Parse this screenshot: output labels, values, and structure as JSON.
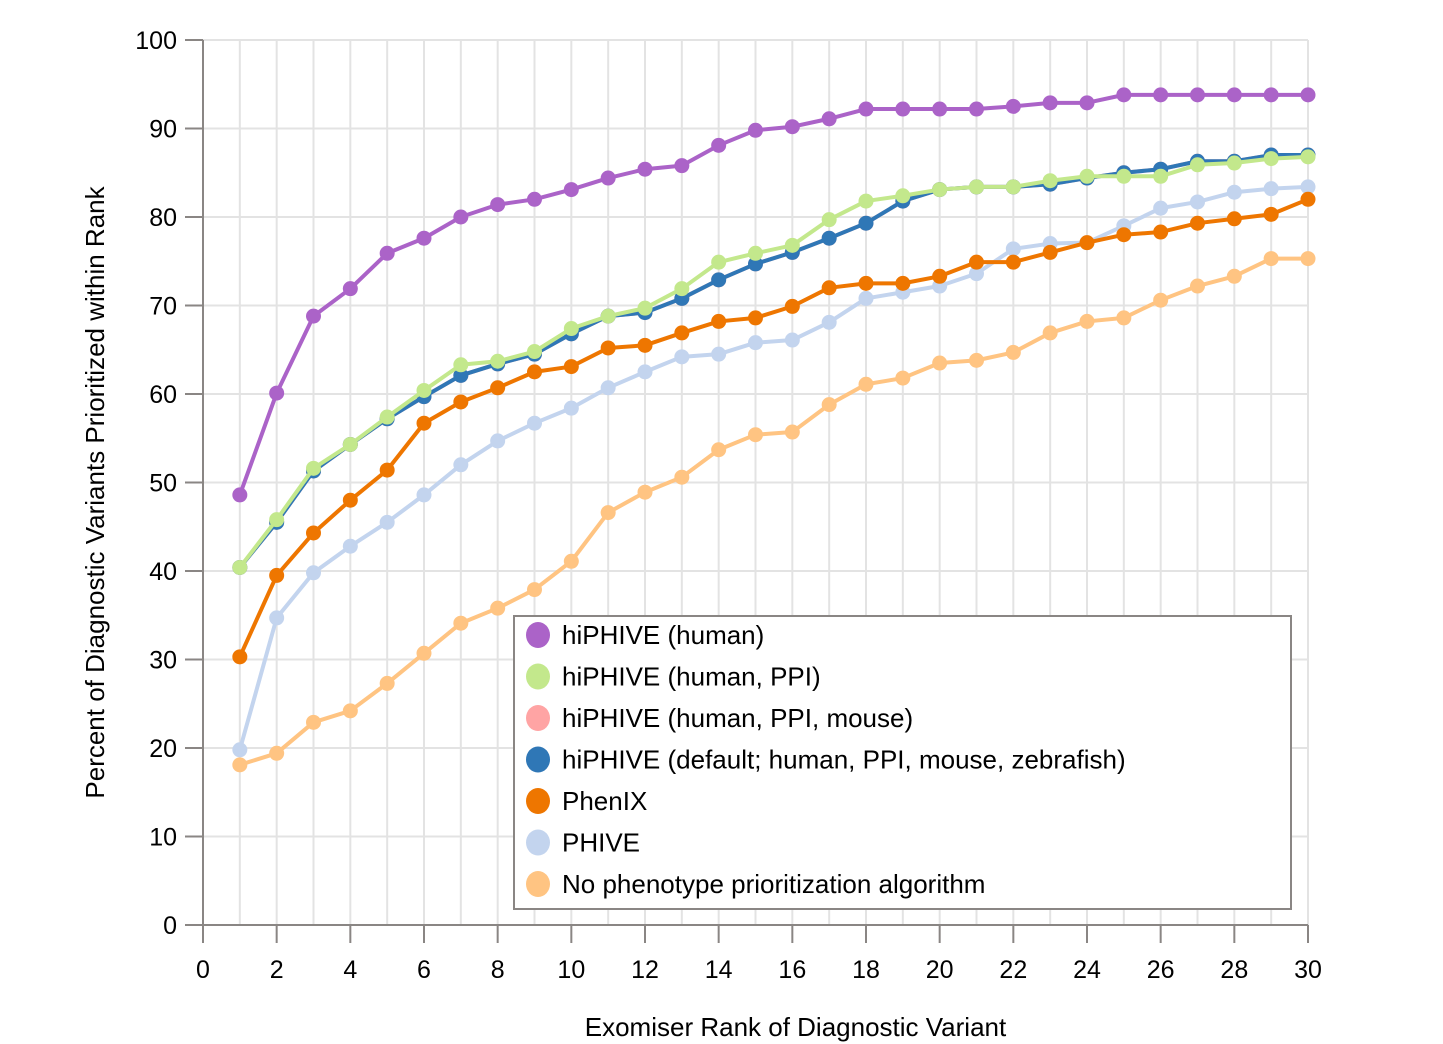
{
  "chart_data": {
    "type": "line",
    "title": "",
    "xlabel": "Exomiser Rank of Diagnostic Variant",
    "ylabel": "Percent of Diagnostic Variants Prioritized within Rank",
    "xlim": [
      0,
      30
    ],
    "ylim": [
      0,
      100
    ],
    "xticks": [
      0,
      2,
      4,
      6,
      8,
      10,
      12,
      14,
      16,
      18,
      20,
      22,
      24,
      26,
      28,
      30
    ],
    "yticks": [
      0,
      10,
      20,
      30,
      40,
      50,
      60,
      70,
      80,
      90,
      100
    ],
    "grid": true,
    "legend_position": "bottom-right",
    "x": [
      1,
      2,
      3,
      4,
      5,
      6,
      7,
      8,
      9,
      10,
      11,
      12,
      13,
      14,
      15,
      16,
      17,
      18,
      19,
      20,
      21,
      22,
      23,
      24,
      25,
      26,
      27,
      28,
      29,
      30
    ],
    "series": [
      {
        "name": "No phenotype prioritization algorithm",
        "color": "#FFC482",
        "values": [
          18.1,
          19.4,
          22.9,
          24.2,
          27.3,
          30.7,
          34.1,
          35.8,
          37.9,
          41.1,
          46.6,
          48.9,
          50.6,
          53.7,
          55.4,
          55.7,
          58.8,
          61.1,
          61.8,
          63.5,
          63.8,
          64.7,
          66.9,
          68.2,
          68.6,
          70.6,
          72.2,
          73.3,
          75.3,
          75.3
        ]
      },
      {
        "name": "PHIVE",
        "color": "#C3D4EE",
        "values": [
          19.8,
          34.7,
          39.8,
          42.8,
          45.5,
          48.6,
          52.0,
          54.7,
          56.7,
          58.4,
          60.7,
          62.5,
          64.2,
          64.5,
          65.8,
          66.1,
          68.1,
          70.8,
          71.5,
          72.2,
          73.6,
          76.4,
          77.0,
          77.1,
          79.0,
          81.0,
          81.7,
          82.8,
          83.2,
          83.4
        ]
      },
      {
        "name": "PhenIX",
        "color": "#EE7600",
        "values": [
          30.3,
          39.5,
          44.3,
          48.0,
          51.4,
          56.7,
          59.1,
          60.7,
          62.5,
          63.1,
          65.2,
          65.5,
          66.9,
          68.2,
          68.6,
          69.9,
          72.0,
          72.5,
          72.5,
          73.3,
          74.9,
          74.9,
          76.0,
          77.1,
          78.0,
          78.3,
          79.3,
          79.8,
          80.3,
          82.0
        ]
      },
      {
        "name": "hiPHIVE (human, PPI, mouse)",
        "color": "#FFA4A4",
        "values": [
          40.4,
          45.5,
          51.3,
          54.3,
          57.2,
          59.7,
          62.1,
          63.4,
          64.5,
          66.8,
          68.8,
          69.2,
          70.8,
          72.9,
          74.7,
          76.0,
          77.6,
          79.3,
          81.8,
          83.1,
          83.4,
          83.4,
          83.7,
          84.4,
          85.0,
          85.4,
          86.3,
          86.3,
          87.0,
          87.0
        ]
      },
      {
        "name": "hiPHIVE (default; human, PPI, mouse, zebrafish)",
        "color": "#2F77B6",
        "values": [
          40.4,
          45.5,
          51.3,
          54.3,
          57.2,
          59.7,
          62.1,
          63.4,
          64.5,
          66.8,
          68.8,
          69.2,
          70.8,
          72.9,
          74.7,
          76.0,
          77.6,
          79.3,
          81.8,
          83.1,
          83.4,
          83.4,
          83.7,
          84.4,
          85.0,
          85.4,
          86.3,
          86.3,
          87.0,
          87.0
        ]
      },
      {
        "name": "hiPHIVE (human, PPI)",
        "color": "#C3E88C",
        "values": [
          40.4,
          45.8,
          51.6,
          54.3,
          57.4,
          60.4,
          63.3,
          63.7,
          64.8,
          67.4,
          68.8,
          69.7,
          71.9,
          74.9,
          75.9,
          76.8,
          79.7,
          81.8,
          82.4,
          83.1,
          83.4,
          83.4,
          84.1,
          84.6,
          84.6,
          84.6,
          85.9,
          86.1,
          86.6,
          86.8
        ]
      },
      {
        "name": "hiPHIVE (human)",
        "color": "#AB63C8",
        "values": [
          48.6,
          60.1,
          68.8,
          71.9,
          75.9,
          77.6,
          80.0,
          81.4,
          82.0,
          83.1,
          84.4,
          85.4,
          85.8,
          88.1,
          89.8,
          90.2,
          91.1,
          92.2,
          92.2,
          92.2,
          92.2,
          92.5,
          92.9,
          92.9,
          93.8,
          93.8,
          93.8,
          93.8,
          93.8,
          93.8
        ]
      }
    ],
    "legend_order": [
      "hiPHIVE (human)",
      "hiPHIVE (human, PPI)",
      "hiPHIVE (human, PPI, mouse)",
      "hiPHIVE (default; human, PPI, mouse, zebrafish)",
      "PhenIX",
      "PHIVE",
      "No phenotype prioritization algorithm"
    ]
  }
}
